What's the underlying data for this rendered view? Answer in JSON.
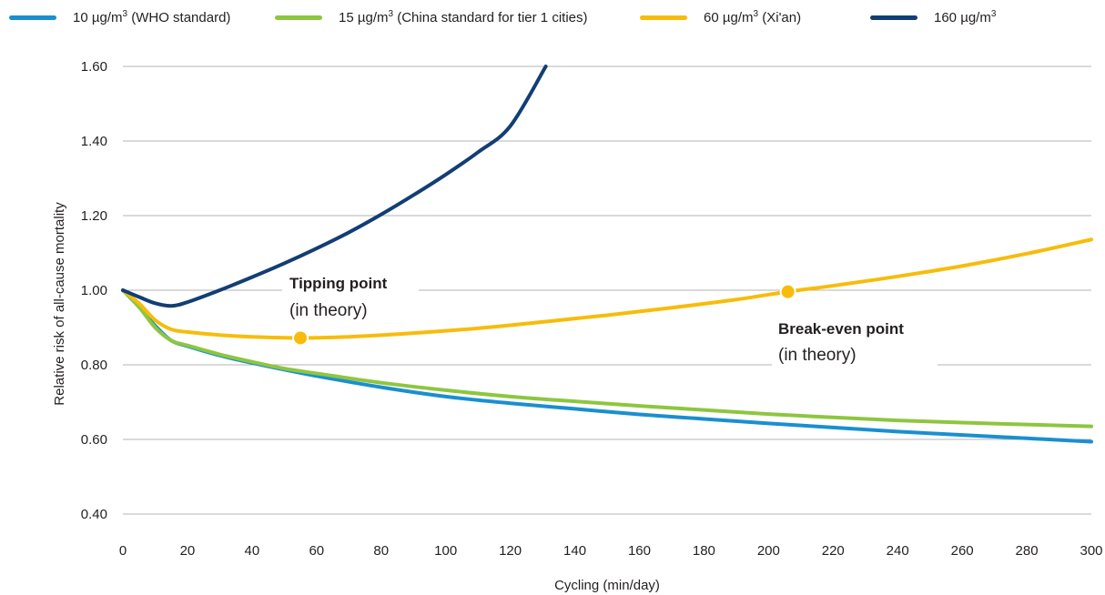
{
  "chart_data": {
    "type": "line",
    "xlabel": "Cycling (min/day)",
    "ylabel": "Relative risk of all-cause mortality",
    "xlim": [
      0,
      300
    ],
    "ylim": [
      0.4,
      1.6
    ],
    "x_ticks": [
      "0",
      "20",
      "40",
      "60",
      "80",
      "100",
      "120",
      "140",
      "160",
      "180",
      "200",
      "220",
      "240",
      "260",
      "280",
      "300"
    ],
    "y_ticks": [
      "0.40",
      "0.60",
      "0.80",
      "1.00",
      "1.20",
      "1.40",
      "1.60"
    ],
    "grid": "horizontal",
    "legend_position": "top",
    "series": [
      {
        "name": "10 µg/m³ (WHO standard)",
        "color": "#1a8fd0",
        "x": [
          0,
          5,
          10,
          15,
          20,
          30,
          40,
          50,
          60,
          80,
          100,
          120,
          140,
          160,
          180,
          200,
          220,
          240,
          260,
          280,
          300
        ],
        "y": [
          1.0,
          0.955,
          0.905,
          0.865,
          0.85,
          0.825,
          0.805,
          0.787,
          0.77,
          0.74,
          0.715,
          0.697,
          0.682,
          0.667,
          0.655,
          0.643,
          0.632,
          0.621,
          0.612,
          0.603,
          0.594
        ]
      },
      {
        "name": "15 µg/m³ (China standard for tier 1 cities)",
        "color": "#8dc63f",
        "x": [
          0,
          5,
          10,
          15,
          20,
          30,
          40,
          50,
          60,
          80,
          100,
          120,
          140,
          160,
          180,
          200,
          220,
          240,
          260,
          280,
          300
        ],
        "y": [
          1.0,
          0.955,
          0.9,
          0.865,
          0.852,
          0.828,
          0.808,
          0.79,
          0.777,
          0.752,
          0.732,
          0.715,
          0.702,
          0.69,
          0.679,
          0.668,
          0.659,
          0.651,
          0.645,
          0.64,
          0.635
        ]
      },
      {
        "name": "60 µg/m³ (Xi'an)",
        "color": "#f7bc0b",
        "x": [
          0,
          5,
          10,
          15,
          20,
          30,
          40,
          55,
          70,
          90,
          110,
          130,
          150,
          170,
          190,
          206,
          220,
          240,
          260,
          280,
          300
        ],
        "y": [
          1.0,
          0.965,
          0.92,
          0.895,
          0.888,
          0.88,
          0.875,
          0.872,
          0.875,
          0.885,
          0.898,
          0.915,
          0.933,
          0.953,
          0.975,
          0.996,
          1.012,
          1.037,
          1.065,
          1.098,
          1.136
        ]
      },
      {
        "name": "160 µg/m³",
        "color": "#123e74",
        "x": [
          0,
          5,
          10,
          15,
          20,
          30,
          40,
          50,
          60,
          70,
          80,
          90,
          100,
          110,
          120,
          131
        ],
        "y": [
          1.0,
          0.982,
          0.965,
          0.958,
          0.968,
          1.0,
          1.035,
          1.072,
          1.112,
          1.155,
          1.203,
          1.255,
          1.31,
          1.37,
          1.44,
          1.6
        ]
      }
    ],
    "annotations": [
      {
        "title": "Tipping point",
        "subtitle": "(in theory)",
        "x": 55,
        "y": 0.872,
        "color": "#f7bc0b"
      },
      {
        "title": "Break-even point",
        "subtitle": "(in theory)",
        "x": 206,
        "y": 0.996,
        "color": "#f7bc0b"
      }
    ]
  },
  "legend": [
    {
      "prefix": "10 µg/m",
      "sup": "3",
      "suffix": " (WHO standard)"
    },
    {
      "prefix": "15 µg/m",
      "sup": "3",
      "suffix": " (China standard for tier 1 cities)"
    },
    {
      "prefix": "60 µg/m",
      "sup": "3",
      "suffix": " (Xi'an)"
    },
    {
      "prefix": "160 µg/m",
      "sup": "3",
      "suffix": ""
    }
  ]
}
